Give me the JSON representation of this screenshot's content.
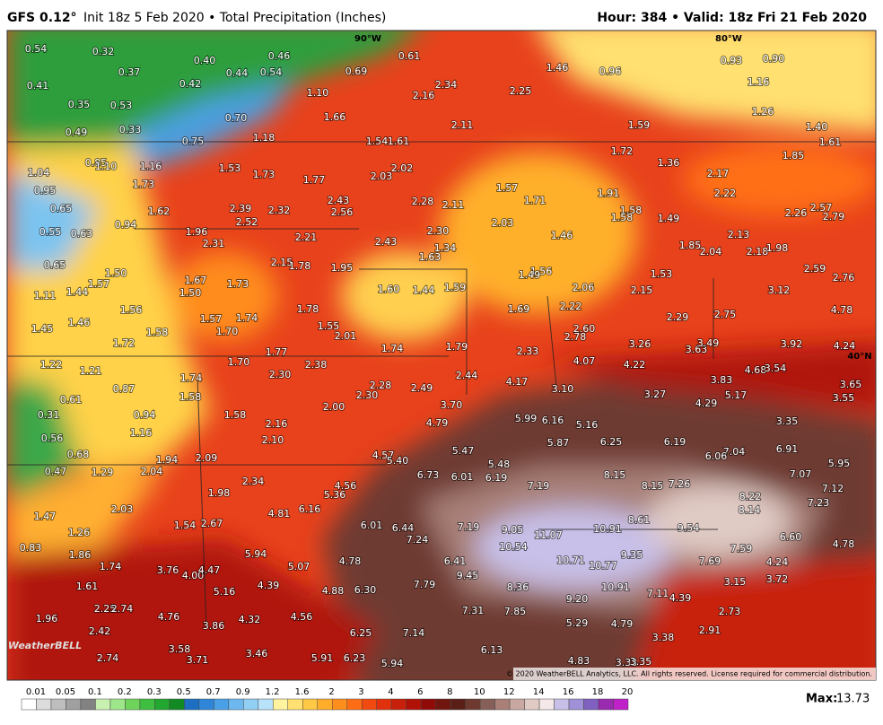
{
  "header": {
    "model": "GFS 0.12°",
    "description": "Init 18z 5 Feb 2020 • Total Precipitation (Inches)",
    "valid": "Hour: 384 • Valid: 18z Fri 21 Feb 2020"
  },
  "map": {
    "lon_labels": [
      "90°W",
      "80°W"
    ],
    "lat_label": "40°N",
    "logo": "WeatherBELL",
    "copyright": "© 2020 WeatherBELL Analytics, LLC. All rights reserved. License required for commercial distribution.",
    "values": [
      "0.54",
      "0.32",
      "0.40",
      "0.46",
      "0.61",
      "1.46",
      "0.96",
      "0.93",
      "0.90",
      "0.41",
      "0.37",
      "0.42",
      "0.44",
      "0.54",
      "0.69",
      "2.34",
      "2.25",
      "1.16",
      "0.35",
      "0.53",
      "1.10",
      "2.16",
      "1.26",
      "0.49",
      "0.33",
      "0.75",
      "0.70",
      "1.18",
      "1.66",
      "2.11",
      "1.59",
      "1.40",
      "1.54",
      "1.61",
      "1.72",
      "1.61",
      "1.85",
      "1.36",
      "1.04",
      "0.85",
      "1.10",
      "1.16",
      "1.53",
      "1.73",
      "1.77",
      "2.03",
      "2.02",
      "2.17",
      "0.95",
      "1.73",
      "0.65",
      "1.62",
      "2.39",
      "2.32",
      "2.43",
      "2.56",
      "2.28",
      "2.11",
      "1.57",
      "1.71",
      "1.91",
      "1.58",
      "1.58",
      "1.49",
      "2.22",
      "2.26",
      "2.57",
      "2.79",
      "0.94",
      "0.55",
      "0.63",
      "1.96",
      "2.52",
      "2.21",
      "2.43",
      "2.30",
      "2.03",
      "1.46",
      "1.85",
      "2.04",
      "2.13",
      "2.18",
      "1.98",
      "2.31",
      "1.34",
      "0.65",
      "1.50",
      "2.15",
      "1.78",
      "1.95",
      "1.63",
      "1.56",
      "1.49",
      "1.53",
      "2.59",
      "2.76",
      "1.11",
      "1.44",
      "1.57",
      "1.67",
      "1.50",
      "1.73",
      "1.60",
      "1.44",
      "1.59",
      "2.06",
      "2.15",
      "3.12",
      "1.56",
      "1.78",
      "2.22",
      "1.69",
      "2.29",
      "2.75",
      "4.78",
      "1.45",
      "1.46",
      "1.58",
      "1.57",
      "1.74",
      "1.70",
      "1.55",
      "2.01",
      "2.60",
      "2.78",
      "3.26",
      "1.72",
      "1.77",
      "1.74",
      "1.79",
      "2.33",
      "3.63",
      "3.49",
      "3.92",
      "4.24",
      "1.22",
      "1.21",
      "1.70",
      "2.38",
      "4.07",
      "4.22",
      "4.68",
      "3.54",
      "0.87",
      "1.74",
      "2.30",
      "2.28",
      "2.49",
      "2.44",
      "4.17",
      "3.10",
      "3.83",
      "3.65",
      "0.61",
      "1.58",
      "2.30",
      "3.27",
      "5.17",
      "3.55",
      "4.29",
      "0.31",
      "0.94",
      "1.58",
      "2.00",
      "3.70",
      "5.99",
      "6.16",
      "5.16",
      "3.35",
      "2.16",
      "4.79",
      "0.56",
      "1.16",
      "2.10",
      "5.87",
      "6.25",
      "6.19",
      "5.47",
      "7.04",
      "6.91",
      "0.68",
      "1.94",
      "2.09",
      "4.57",
      "5.40",
      "6.06",
      "5.48",
      "5.95",
      "0.47",
      "1.29",
      "2.04",
      "6.73",
      "6.01",
      "6.19",
      "8.15",
      "7.07",
      "2.34",
      "4.56",
      "7.19",
      "8.15",
      "7.26",
      "7.12",
      "1.98",
      "5.36",
      "8.22",
      "7.23",
      "2.03",
      "4.81",
      "6.16",
      "8.14",
      "1.47",
      "1.54",
      "2.67",
      "6.01",
      "6.44",
      "7.19",
      "9.05",
      "10.91",
      "8.61",
      "9.54",
      "1.26",
      "7.24",
      "11.07",
      "10.54",
      "6.60",
      "4.78",
      "0.83",
      "1.86",
      "5.94",
      "9.35",
      "7.59",
      "1.74",
      "3.76",
      "4.00",
      "4.47",
      "5.07",
      "4.78",
      "6.41",
      "10.71",
      "10.77",
      "7.69",
      "4.24",
      "9.45",
      "3.72",
      "1.61",
      "4.39",
      "4.88",
      "6.30",
      "7.79",
      "8.36",
      "10.91",
      "3.15",
      "5.16",
      "7.11",
      "9.20",
      "4.39",
      "2.25",
      "2.74",
      "4.76",
      "4.32",
      "4.56",
      "7.31",
      "7.85",
      "2.73",
      "1.96",
      "3.86",
      "5.29",
      "4.79",
      "2.42",
      "6.25",
      "7.14",
      "2.91",
      "3.38",
      "3.58",
      "6.13",
      "2.74",
      "3.71",
      "3.46",
      "5.91",
      "6.23",
      "5.94",
      "4.83",
      "3.33",
      "3.35"
    ]
  },
  "colorbar": {
    "ticks": [
      "0.01",
      "0.05",
      "0.1",
      "0.2",
      "0.3",
      "0.5",
      "0.7",
      "0.9",
      "1.2",
      "1.6",
      "2",
      "3",
      "4",
      "6",
      "8",
      "10",
      "12",
      "14",
      "16",
      "18",
      "20"
    ],
    "colors": [
      "#ffffff",
      "#dcdcdc",
      "#bebebe",
      "#a0a0a0",
      "#828282",
      "#c8f0b0",
      "#9ee68a",
      "#6fd45c",
      "#3fbf3f",
      "#22a830",
      "#128a24",
      "#1d6fc4",
      "#2f86d8",
      "#4aa0e6",
      "#6cb8ef",
      "#92cff5",
      "#b8e2fa",
      "#fff3a0",
      "#ffe070",
      "#ffc845",
      "#ffad2a",
      "#ff8f1c",
      "#ff6e14",
      "#f04a10",
      "#e0300c",
      "#c8200a",
      "#b01208",
      "#900a08",
      "#70160e",
      "#5a2018",
      "#6e3a30",
      "#866058",
      "#a88078",
      "#c8a8a0",
      "#e0cac4",
      "#f4e8e8",
      "#c8c0e8",
      "#a090d8",
      "#8060c0",
      "#9a2ab0",
      "#c020c8"
    ]
  },
  "max": {
    "label": "Max:",
    "value": "13.73"
  }
}
